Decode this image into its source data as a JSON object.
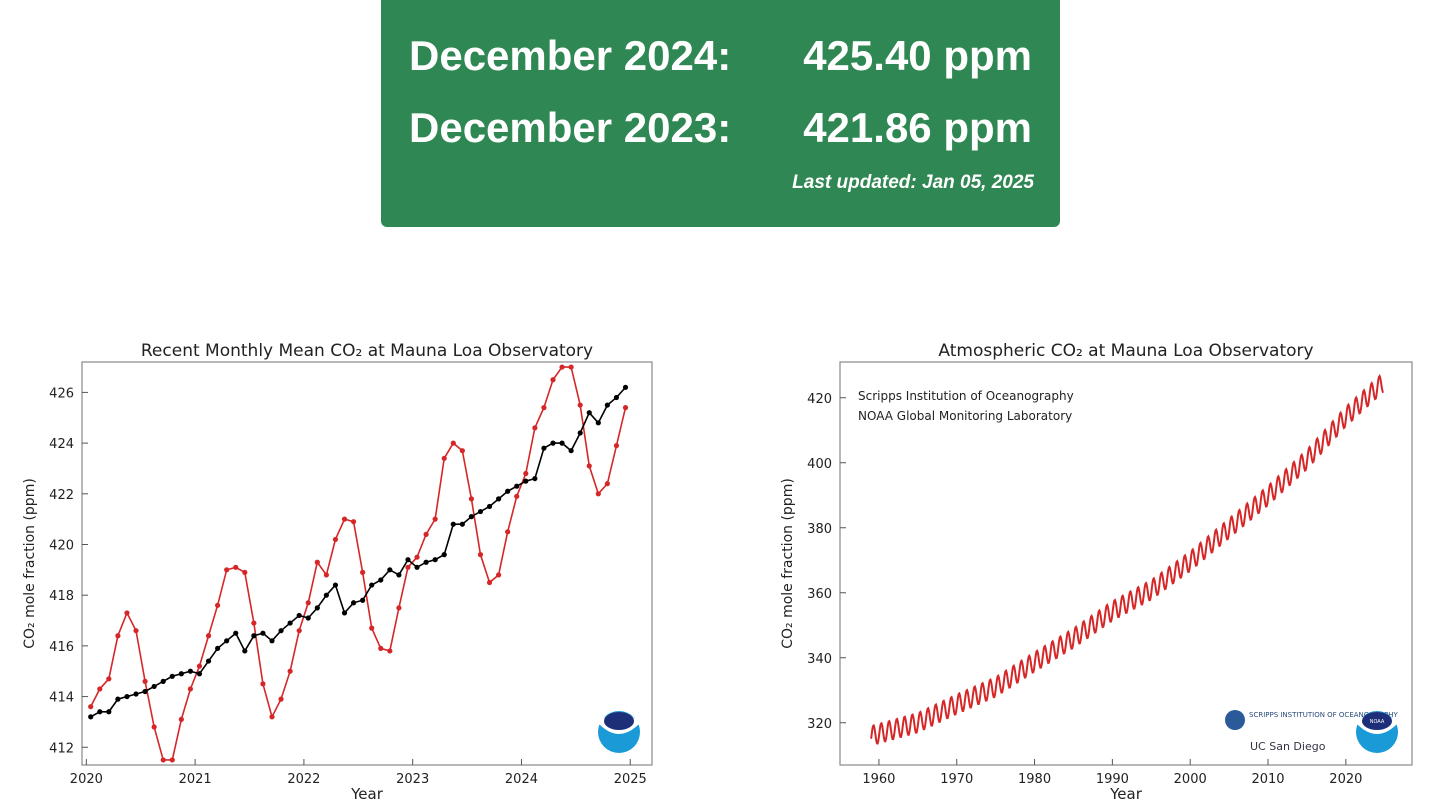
{
  "banner": {
    "row1_label": "December 2024:",
    "row1_value": "425.40 ppm",
    "row2_label": "December 2023:",
    "row2_value": "421.86 ppm",
    "updated": "Last updated: Jan 05, 2025",
    "color": "#2f8753"
  },
  "chart_data": [
    {
      "type": "line",
      "title": "Recent Monthly Mean CO₂ at Mauna Loa Observatory",
      "xlabel": "Year",
      "ylabel": "CO₂ mole fraction (ppm)",
      "xlim": [
        2019.96,
        2025.2
      ],
      "ylim": [
        411.3,
        427.2
      ],
      "xticks": [
        "2020",
        "2021",
        "2022",
        "2023",
        "2024",
        "2025"
      ],
      "yticks": [
        "412",
        "414",
        "416",
        "418",
        "420",
        "422",
        "424",
        "426"
      ],
      "x_start": 2020.04,
      "x_step": 0.08333,
      "series": [
        {
          "name": "monthly mean",
          "color": "#d62728",
          "values": [
            413.6,
            414.3,
            414.7,
            416.4,
            417.3,
            416.6,
            414.6,
            412.8,
            411.5,
            411.5,
            413.1,
            414.3,
            415.2,
            416.4,
            417.6,
            419.0,
            419.1,
            418.9,
            416.9,
            414.5,
            413.2,
            413.9,
            415.0,
            416.6,
            417.7,
            419.3,
            418.8,
            420.2,
            421.0,
            420.9,
            418.9,
            416.7,
            415.9,
            415.8,
            417.5,
            419.1,
            419.5,
            420.4,
            421.0,
            423.4,
            424.0,
            423.7,
            421.8,
            419.6,
            418.5,
            418.8,
            420.5,
            421.9,
            422.8,
            424.6,
            425.4,
            426.5,
            427.0,
            427.0,
            425.5,
            423.1,
            422.0,
            422.4,
            423.9,
            425.4
          ]
        },
        {
          "name": "deseasonalized",
          "color": "#000000",
          "values": [
            413.2,
            413.4,
            413.4,
            413.9,
            414.0,
            414.1,
            414.2,
            414.4,
            414.6,
            414.8,
            414.9,
            415.0,
            414.9,
            415.4,
            415.9,
            416.2,
            416.5,
            415.8,
            416.4,
            416.5,
            416.2,
            416.6,
            416.9,
            417.2,
            417.1,
            417.5,
            418.0,
            418.4,
            417.3,
            417.7,
            417.8,
            418.4,
            418.6,
            419.0,
            418.8,
            419.4,
            419.1,
            419.3,
            419.4,
            419.6,
            420.8,
            420.8,
            421.1,
            421.3,
            421.5,
            421.8,
            422.1,
            422.3,
            422.5,
            422.6,
            423.8,
            424.0,
            424.0,
            423.7,
            424.4,
            425.2,
            424.8,
            425.5,
            425.8,
            426.2
          ]
        }
      ]
    },
    {
      "type": "line",
      "title": "Atmospheric CO₂ at Mauna Loa Observatory",
      "xlabel": "Year",
      "ylabel": "CO₂ mole fraction (ppm)",
      "xlim": [
        1955,
        2028.5
      ],
      "ylim": [
        307,
        431
      ],
      "xticks": [
        "1960",
        "1970",
        "1980",
        "1990",
        "2000",
        "2010",
        "2020"
      ],
      "yticks": [
        "320",
        "340",
        "360",
        "380",
        "400",
        "420"
      ],
      "annotations": [
        "Scripps Institution of Oceanography",
        "NOAA Global Monitoring Laboratory"
      ],
      "logos": [
        "SCRIPPS INSTITUTION OF OCEANOGRAPHY",
        "UC San Diego",
        "NOAA"
      ],
      "seasonal_amplitude": 3,
      "series": [
        {
          "name": "monthly mean",
          "color": "#d62728",
          "points": [
            [
              1959,
              316
            ],
            [
              1965,
              320
            ],
            [
              1970,
              325.7
            ],
            [
              1975,
              331
            ],
            [
              1980,
              338.7
            ],
            [
              1985,
              346
            ],
            [
              1990,
              354.4
            ],
            [
              1995,
              360.9
            ],
            [
              2000,
              369.7
            ],
            [
              2005,
              379.8
            ],
            [
              2010,
              389.9
            ],
            [
              2015,
              401
            ],
            [
              2020,
              414.2
            ],
            [
              2024.9,
              425
            ]
          ]
        }
      ]
    }
  ]
}
